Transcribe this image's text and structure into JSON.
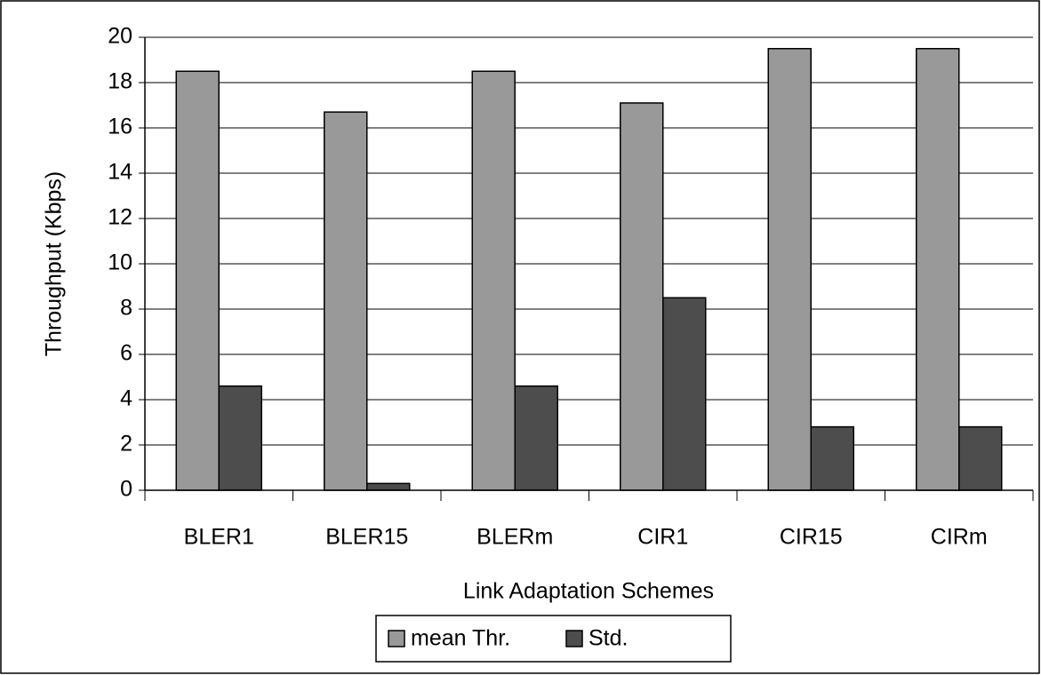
{
  "chart_data": {
    "type": "bar",
    "categories": [
      "BLER1",
      "BLER15",
      "BLERm",
      "CIR1",
      "CIR15",
      "CIRm"
    ],
    "series": [
      {
        "name": "mean Thr.",
        "color": "#999999",
        "values": [
          18.5,
          16.7,
          18.5,
          17.1,
          19.5,
          19.5
        ]
      },
      {
        "name": "Std.",
        "color": "#4d4d4d",
        "values": [
          4.6,
          0.3,
          4.6,
          8.5,
          2.8,
          2.8
        ]
      }
    ],
    "ylim": [
      0,
      20
    ],
    "yticks": [
      0,
      2,
      4,
      6,
      8,
      10,
      12,
      14,
      16,
      18,
      20
    ],
    "grid": true,
    "y_label": "Throughput (Kbps)",
    "x_label": "Link Adaptation Schemes"
  }
}
